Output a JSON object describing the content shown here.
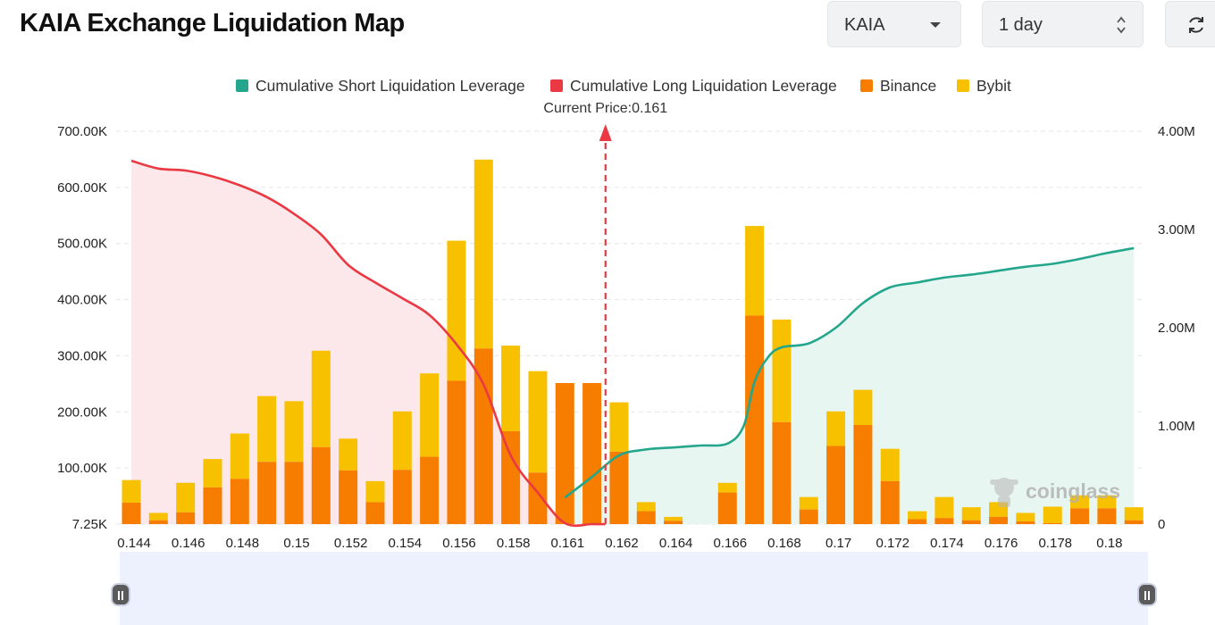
{
  "header": {
    "title": "KAIA Exchange Liquidation Map",
    "asset_select": "KAIA",
    "range_select": "1 day",
    "refresh_icon": "refresh-icon"
  },
  "colors": {
    "short": "#23a68b",
    "long": "#ea3943",
    "binance": "#f77d00",
    "bybit": "#f8c100",
    "short_fill": "#e8f6f1",
    "long_fill": "#fce7ea"
  },
  "chart_data": {
    "type": "bar",
    "legend": [
      "Cumulative Short Liquidation Leverage",
      "Cumulative Long Liquidation Leverage",
      "Binance",
      "Bybit"
    ],
    "current_price_label": "Current Price:0.161",
    "x_ticks": [
      "0.144",
      "0.146",
      "0.148",
      "0.15",
      "0.152",
      "0.154",
      "0.156",
      "0.158",
      "0.161",
      "0.162",
      "0.164",
      "0.166",
      "0.168",
      "0.17",
      "0.172",
      "0.174",
      "0.176",
      "0.178",
      "0.18"
    ],
    "y_left_ticks": [
      "7.25K",
      "100.00K",
      "200.00K",
      "300.00K",
      "400.00K",
      "500.00K",
      "600.00K",
      "700.00K"
    ],
    "y_right_ticks": [
      "0",
      "1.00M",
      "2.00M",
      "3.00M",
      "4.00M"
    ],
    "watermark": "coinglass",
    "y_left_range": [
      7250,
      700000
    ],
    "y_right_range": [
      0,
      4000000
    ],
    "bin_count": 38,
    "current_price_bin": 17.5,
    "bars": [
      {
        "bin": 0,
        "binance": 45000,
        "total": 85000
      },
      {
        "bin": 1,
        "binance": 14000,
        "total": 27000
      },
      {
        "bin": 2,
        "binance": 28000,
        "total": 80000
      },
      {
        "bin": 3,
        "binance": 72000,
        "total": 122000
      },
      {
        "bin": 4,
        "binance": 87000,
        "total": 167000
      },
      {
        "bin": 5,
        "binance": 117000,
        "total": 233000
      },
      {
        "bin": 6,
        "binance": 117000,
        "total": 224000
      },
      {
        "bin": 7,
        "binance": 143000,
        "total": 313000
      },
      {
        "bin": 8,
        "binance": 102000,
        "total": 158000
      },
      {
        "bin": 9,
        "binance": 46000,
        "total": 83000
      },
      {
        "bin": 10,
        "binance": 103000,
        "total": 206000
      },
      {
        "bin": 11,
        "binance": 126000,
        "total": 273000
      },
      {
        "bin": 12,
        "binance": 260000,
        "total": 507000
      },
      {
        "bin": 13,
        "binance": 317000,
        "total": 650000
      },
      {
        "bin": 14,
        "binance": 171000,
        "total": 322000
      },
      {
        "bin": 15,
        "binance": 98000,
        "total": 277000
      },
      {
        "bin": 16,
        "binance": 256000,
        "total": 256000
      },
      {
        "bin": 17,
        "binance": 256000,
        "total": 256000
      },
      {
        "bin": 18,
        "binance": 135000,
        "total": 222000
      },
      {
        "bin": 19,
        "binance": 30000,
        "total": 46000
      },
      {
        "bin": 20,
        "binance": 13000,
        "total": 20000
      },
      {
        "bin": 22,
        "binance": 63000,
        "total": 80000
      },
      {
        "bin": 23,
        "binance": 375000,
        "total": 533000
      },
      {
        "bin": 24,
        "binance": 187000,
        "total": 368000
      },
      {
        "bin": 25,
        "binance": 33000,
        "total": 55000
      },
      {
        "bin": 26,
        "binance": 145000,
        "total": 206000
      },
      {
        "bin": 27,
        "binance": 182000,
        "total": 244000
      },
      {
        "bin": 28,
        "binance": 83000,
        "total": 140000
      },
      {
        "bin": 29,
        "binance": 16000,
        "total": 30000
      },
      {
        "bin": 30,
        "binance": 18000,
        "total": 55000
      },
      {
        "bin": 31,
        "binance": 14000,
        "total": 37000
      },
      {
        "bin": 32,
        "binance": 20000,
        "total": 46000
      },
      {
        "bin": 33,
        "binance": 12000,
        "total": 27000
      },
      {
        "bin": 34,
        "binance": 9000,
        "total": 38000
      },
      {
        "bin": 35,
        "binance": 35000,
        "total": 58000
      },
      {
        "bin": 36,
        "binance": 35000,
        "total": 58000
      },
      {
        "bin": 37,
        "binance": 14000,
        "total": 37000
      }
    ],
    "long_cumulative": [
      {
        "bin": 0,
        "v": 3700000
      },
      {
        "bin": 1,
        "v": 3620000
      },
      {
        "bin": 2,
        "v": 3600000
      },
      {
        "bin": 3,
        "v": 3540000
      },
      {
        "bin": 4,
        "v": 3450000
      },
      {
        "bin": 5,
        "v": 3330000
      },
      {
        "bin": 6,
        "v": 3160000
      },
      {
        "bin": 7,
        "v": 2950000
      },
      {
        "bin": 8,
        "v": 2640000
      },
      {
        "bin": 9,
        "v": 2460000
      },
      {
        "bin": 10,
        "v": 2300000
      },
      {
        "bin": 11,
        "v": 2130000
      },
      {
        "bin": 12,
        "v": 1830000
      },
      {
        "bin": 13,
        "v": 1420000
      },
      {
        "bin": 14,
        "v": 700000
      },
      {
        "bin": 15,
        "v": 320000
      },
      {
        "bin": 16,
        "v": 10000
      },
      {
        "bin": 17,
        "v": 0
      },
      {
        "bin": 17.5,
        "v": 0
      }
    ],
    "short_cumulative": [
      {
        "bin": 16,
        "v": 270000
      },
      {
        "bin": 17,
        "v": 480000
      },
      {
        "bin": 18,
        "v": 700000
      },
      {
        "bin": 19,
        "v": 760000
      },
      {
        "bin": 20,
        "v": 780000
      },
      {
        "bin": 21,
        "v": 800000
      },
      {
        "bin": 22,
        "v": 820000
      },
      {
        "bin": 22.6,
        "v": 1000000
      },
      {
        "bin": 23,
        "v": 1450000
      },
      {
        "bin": 23.5,
        "v": 1700000
      },
      {
        "bin": 24,
        "v": 1800000
      },
      {
        "bin": 25,
        "v": 1840000
      },
      {
        "bin": 26,
        "v": 2000000
      },
      {
        "bin": 27,
        "v": 2250000
      },
      {
        "bin": 28,
        "v": 2410000
      },
      {
        "bin": 29,
        "v": 2460000
      },
      {
        "bin": 30,
        "v": 2510000
      },
      {
        "bin": 31,
        "v": 2540000
      },
      {
        "bin": 32,
        "v": 2580000
      },
      {
        "bin": 33,
        "v": 2620000
      },
      {
        "bin": 34,
        "v": 2650000
      },
      {
        "bin": 35,
        "v": 2700000
      },
      {
        "bin": 36,
        "v": 2760000
      },
      {
        "bin": 37,
        "v": 2810000
      }
    ]
  }
}
